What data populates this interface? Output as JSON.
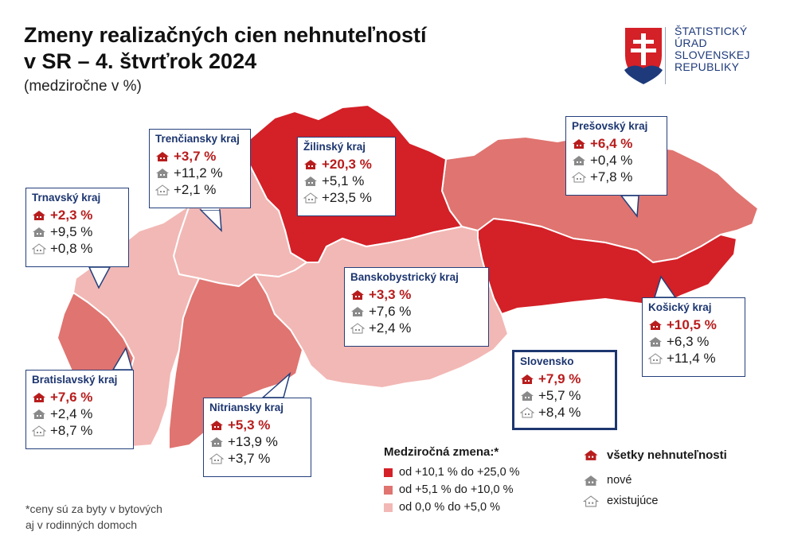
{
  "title_line1": "Zmeny realizačných cien nehnuteľností",
  "title_line2": "v SR – 4. štvrťrok 2024",
  "subtitle": "(medziročne v %)",
  "logo": {
    "line1": "ŠTATISTICKÝ",
    "line2": "ÚRAD",
    "line3": "SLOVENSKEJ",
    "line4": "REPUBLIKY",
    "colors": {
      "red": "#d42027",
      "blue": "#1e3a7b",
      "white": "#ffffff"
    }
  },
  "colors": {
    "high": "#d42027",
    "mid": "#e07470",
    "low": "#f2b8b5",
    "box_border": "#24407c",
    "value_red": "#b81d1d",
    "icon_gray": "#8a8a8a"
  },
  "regions": {
    "trnavsky": {
      "name": "Trnavský kraj",
      "all": "+2,3 %",
      "new": "+9,5 %",
      "existing": "+0,8 %"
    },
    "trenciansky": {
      "name": "Trenčiansky kraj",
      "all": "+3,7 %",
      "new": "+11,2 %",
      "existing": "+2,1 %"
    },
    "zilinsky": {
      "name": "Žilinský kraj",
      "all": "+20,3 %",
      "new": "+5,1 %",
      "existing": "+23,5 %"
    },
    "presovsky": {
      "name": "Prešovský kraj",
      "all": "+6,4 %",
      "new": "+0,4 %",
      "existing": "+7,8 %"
    },
    "banskobystricky": {
      "name": "Banskobystrický kraj",
      "all": "+3,3 %",
      "new": "+7,6 %",
      "existing": "+2,4 %"
    },
    "kosicky": {
      "name": "Košický kraj",
      "all": "+10,5 %",
      "new": "+6,3 %",
      "existing": "+11,4 %"
    },
    "bratislavsky": {
      "name": "Bratislavský kraj",
      "all": "+7,6 %",
      "new": "+2,4 %",
      "existing": "+8,7 %"
    },
    "nitriansky": {
      "name": "Nitriansky kraj",
      "all": "+5,3 %",
      "new": "+13,9 %",
      "existing": "+3,7 %"
    },
    "slovensko": {
      "name": "Slovensko",
      "all": "+7,9 %",
      "new": "+5,7 %",
      "existing": "+8,4 %"
    }
  },
  "legend": {
    "title": "Medziročná zmena:*",
    "ranges": [
      "od +10,1 % do +25,0 %",
      "od +5,1 % do +10,0 %",
      "od 0,0 % do +5,0 %"
    ],
    "types": [
      "všetky nehnuteľnosti",
      "nové",
      "existujúce"
    ]
  },
  "footnote_line1": "*ceny sú za byty v bytových",
  "footnote_line2": "aj v rodinných domoch"
}
